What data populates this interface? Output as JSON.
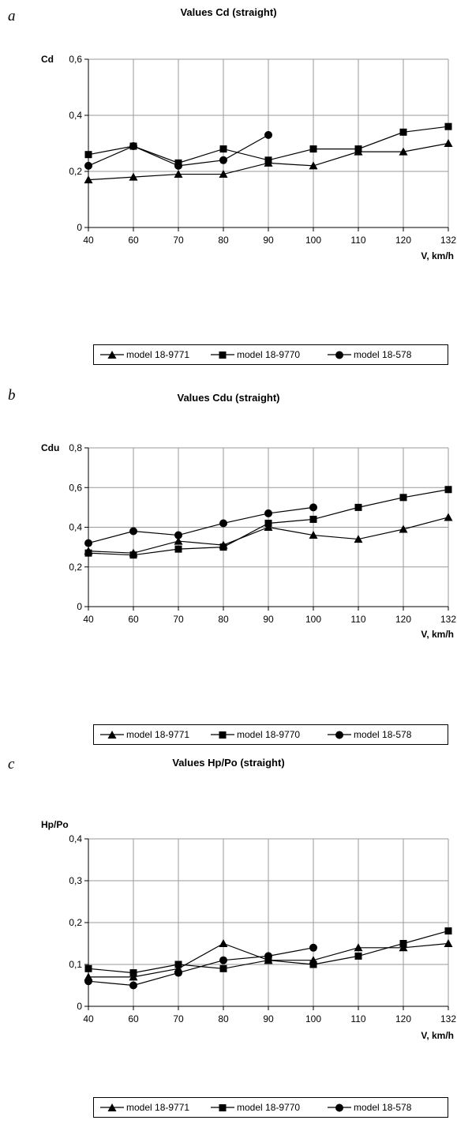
{
  "chart_data": [
    {
      "type": "line",
      "panel_label": "a",
      "title": "Values Cd (straight)",
      "ylabel": "Cd",
      "xlabel": "V, km/h",
      "categories": [
        "40",
        "60",
        "70",
        "80",
        "90",
        "100",
        "110",
        "120",
        "132"
      ],
      "ylim": [
        0,
        0.6
      ],
      "yticks": [
        "0",
        "0,2",
        "0,4",
        "0,6"
      ],
      "grid": true,
      "legend_position": "bottom",
      "series": [
        {
          "name": "model 18-9771",
          "marker": "triangle",
          "values": [
            0.17,
            0.18,
            0.19,
            0.19,
            0.23,
            0.22,
            0.27,
            0.27,
            0.3
          ]
        },
        {
          "name": "model 18-9770",
          "marker": "square",
          "values": [
            0.26,
            0.29,
            0.23,
            0.28,
            0.24,
            0.28,
            0.28,
            0.34,
            0.36
          ]
        },
        {
          "name": "model 18-578",
          "marker": "circle",
          "values": [
            0.22,
            0.29,
            0.22,
            0.24,
            0.33,
            null,
            null,
            null,
            null
          ]
        }
      ]
    },
    {
      "type": "line",
      "panel_label": "b",
      "title": "Values Cdu (straight)",
      "ylabel": "Cdu",
      "xlabel": "V, km/h",
      "categories": [
        "40",
        "60",
        "70",
        "80",
        "90",
        "100",
        "110",
        "120",
        "132"
      ],
      "ylim": [
        0,
        0.8
      ],
      "yticks": [
        "0",
        "0,2",
        "0,4",
        "0,6",
        "0,8"
      ],
      "grid": true,
      "legend_position": "bottom",
      "series": [
        {
          "name": "model 18-9771",
          "marker": "triangle",
          "values": [
            0.28,
            0.27,
            0.33,
            0.31,
            0.4,
            0.36,
            0.34,
            0.39,
            0.45
          ]
        },
        {
          "name": "model 18-9770",
          "marker": "square",
          "values": [
            0.27,
            0.26,
            0.29,
            0.3,
            0.42,
            0.44,
            0.5,
            0.55,
            0.59
          ]
        },
        {
          "name": "model 18-578",
          "marker": "circle",
          "values": [
            0.32,
            0.38,
            0.36,
            0.42,
            0.47,
            0.5,
            null,
            null,
            null
          ]
        }
      ]
    },
    {
      "type": "line",
      "panel_label": "c",
      "title": "Values Hp/Po (straight)",
      "ylabel": "Hp/Po",
      "xlabel": "V, km/h",
      "categories": [
        "40",
        "60",
        "70",
        "80",
        "90",
        "100",
        "110",
        "120",
        "132"
      ],
      "ylim": [
        0,
        0.4
      ],
      "yticks": [
        "0",
        "0,1",
        "0,2",
        "0,3",
        "0,4"
      ],
      "grid": true,
      "legend_position": "bottom",
      "series": [
        {
          "name": "model 18-9771",
          "marker": "triangle",
          "values": [
            0.07,
            0.07,
            0.09,
            0.15,
            0.11,
            0.11,
            0.14,
            0.14,
            0.15
          ]
        },
        {
          "name": "model 18-9770",
          "marker": "square",
          "values": [
            0.09,
            0.08,
            0.1,
            0.09,
            0.11,
            0.1,
            0.12,
            0.15,
            0.18
          ]
        },
        {
          "name": "model 18-578",
          "marker": "circle",
          "values": [
            0.06,
            0.05,
            0.08,
            0.11,
            0.12,
            0.14,
            null,
            null,
            null
          ]
        }
      ]
    }
  ]
}
